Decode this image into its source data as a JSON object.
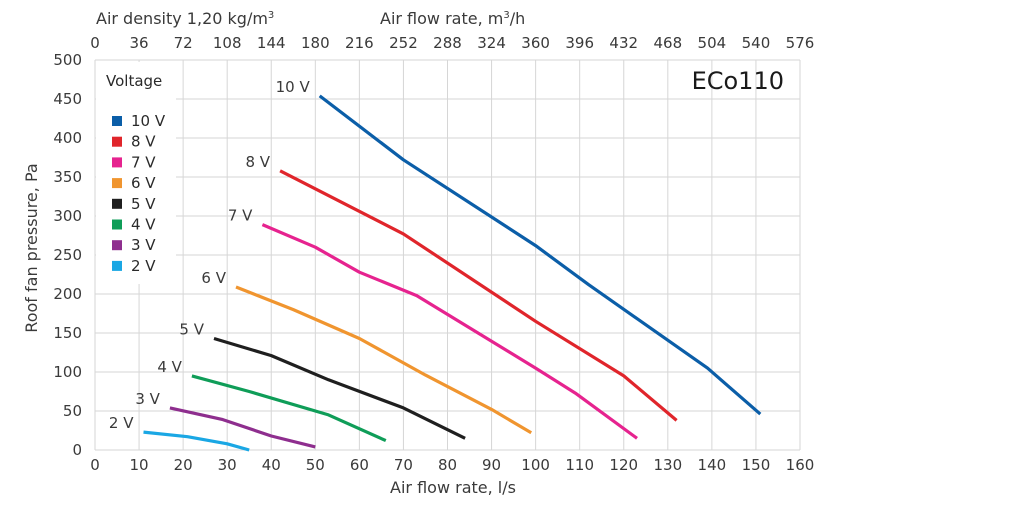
{
  "chart_data": {
    "type": "line",
    "title": "ECo110",
    "xlabel": "Air flow rate, l/s",
    "ylabel": "Roof fan pressure, Pa",
    "xlim": [
      0,
      160
    ],
    "ylim": [
      0,
      500
    ],
    "x_ticks": [
      0,
      10,
      20,
      30,
      40,
      50,
      60,
      70,
      80,
      90,
      100,
      110,
      120,
      130,
      140,
      150,
      160
    ],
    "y_ticks": [
      0,
      50,
      100,
      150,
      200,
      250,
      300,
      350,
      400,
      450,
      500
    ],
    "top_axis": {
      "label_prefix": "Air density 1,20 kg/m",
      "label_sup": "3",
      "label2_prefix": "Air flow rate, m",
      "label2_sup": "3",
      "label2_suffix": "/h",
      "ticks": [
        0,
        36,
        72,
        108,
        144,
        180,
        216,
        252,
        288,
        324,
        360,
        396,
        432,
        468,
        504,
        540,
        576
      ]
    },
    "grid": true,
    "legend": {
      "title": "Voltage",
      "position": "top-left"
    },
    "series": [
      {
        "name": "10 V",
        "color": "#0b5ea8",
        "x": [
          51,
          70,
          100,
          112,
          139,
          151
        ],
        "y": [
          454,
          372,
          262,
          212,
          105,
          46
        ]
      },
      {
        "name": "8 V",
        "color": "#e0252b",
        "x": [
          42,
          70,
          100,
          120,
          132
        ],
        "y": [
          358,
          277,
          165,
          95,
          38
        ]
      },
      {
        "name": "7 V",
        "color": "#e6238f",
        "x": [
          38,
          50,
          60,
          73,
          100,
          109,
          123
        ],
        "y": [
          289,
          260,
          228,
          198,
          105,
          73,
          15
        ]
      },
      {
        "name": "6 V",
        "color": "#f0952f",
        "x": [
          32,
          45,
          60,
          75,
          90,
          99
        ],
        "y": [
          209,
          180,
          143,
          96,
          52,
          22
        ]
      },
      {
        "name": "5 V",
        "color": "#1f1f1f",
        "x": [
          27,
          40,
          53,
          70,
          84
        ],
        "y": [
          143,
          121,
          90,
          54,
          15
        ]
      },
      {
        "name": "4 V",
        "color": "#0f9d58",
        "x": [
          22,
          35,
          53,
          66
        ],
        "y": [
          95,
          75,
          45,
          12
        ]
      },
      {
        "name": "3 V",
        "color": "#8e2e8e",
        "x": [
          17,
          29,
          40,
          50
        ],
        "y": [
          54,
          39,
          18,
          4
        ]
      },
      {
        "name": "2 V",
        "color": "#1aa7e4",
        "x": [
          11,
          21,
          30,
          35
        ],
        "y": [
          23,
          17,
          8,
          0
        ]
      }
    ]
  }
}
